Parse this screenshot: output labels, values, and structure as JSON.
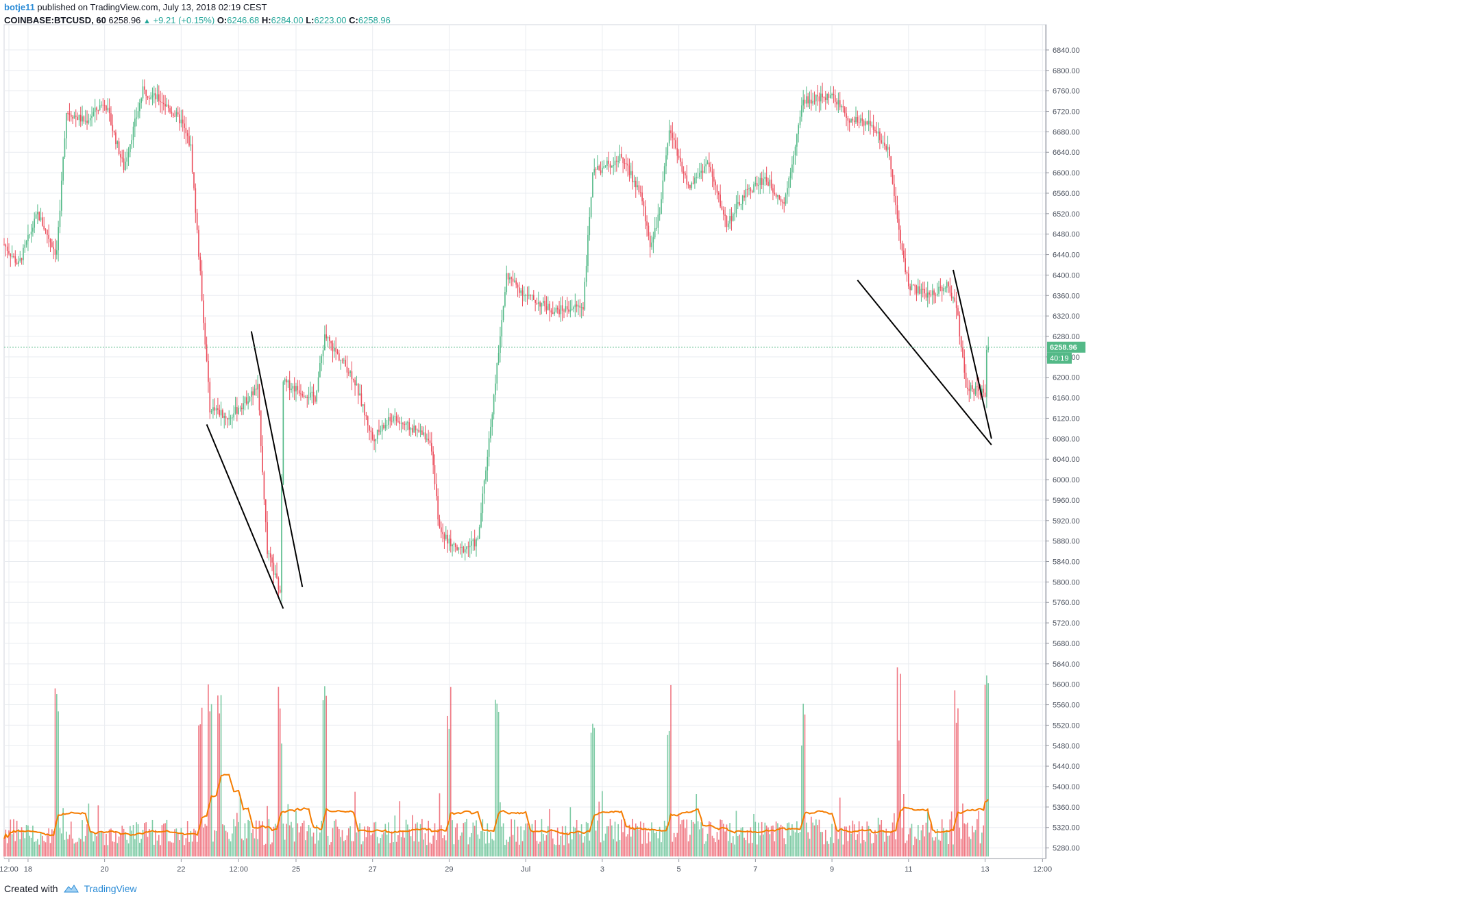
{
  "header": {
    "user": "botje11",
    "published_text": "published on TradingView.com, July 13, 2018 02:19 CEST",
    "symbol": "COINBASE:BTCUSD, 60",
    "last": "6258.96",
    "change": "+9.21 (+0.15%)",
    "o_label": "O:",
    "o_value": "6246.68",
    "h_label": "H:",
    "h_value": "6284.00",
    "l_label": "L:",
    "l_value": "6223.00",
    "c_label": "C:",
    "c_value": "6258.96"
  },
  "footer": {
    "created_with": "Created with",
    "brand": "TradingView"
  },
  "colors": {
    "up": "#53b987",
    "down": "#eb4d5c",
    "grid": "#e9ecf0",
    "axis_text": "#4c525e",
    "ma": "#f57c00",
    "price_tag": "#53b987"
  },
  "chart_data": {
    "type": "candlestick",
    "x_start": "2018-06-17 09:00",
    "x_end": "2018-07-13 02:00",
    "interval": "60",
    "x_tick_labels": [
      "12:00",
      "18",
      "20",
      "22",
      "12:00",
      "25",
      "27",
      "29",
      "Jul",
      "3",
      "5",
      "7",
      "9",
      "11",
      "13",
      "12:00"
    ],
    "x_tick_times": [
      "2018-06-17 12:00",
      "2018-06-18 00:00",
      "2018-06-20 00:00",
      "2018-06-22 00:00",
      "2018-06-23 12:00",
      "2018-06-25 00:00",
      "2018-06-27 00:00",
      "2018-06-29 00:00",
      "2018-07-01 00:00",
      "2018-07-03 00:00",
      "2018-07-05 00:00",
      "2018-07-07 00:00",
      "2018-07-09 00:00",
      "2018-07-11 00:00",
      "2018-07-13 00:00",
      "2018-07-14 12:00"
    ],
    "y_ticks": [
      5280,
      5320,
      5360,
      5400,
      5440,
      5480,
      5520,
      5560,
      5600,
      5640,
      5680,
      5720,
      5760,
      5800,
      5840,
      5880,
      5920,
      5960,
      6000,
      6040,
      6080,
      6120,
      6160,
      6200,
      6240,
      6280,
      6320,
      6360,
      6400,
      6440,
      6480,
      6520,
      6560,
      6600,
      6640,
      6680,
      6720,
      6760,
      6800,
      6840
    ],
    "ylim": [
      5250,
      6860
    ],
    "price_path": [
      [
        "2018-06-17 09:00",
        6460
      ],
      [
        "2018-06-17 18:00",
        6420
      ],
      [
        "2018-06-18 06:00",
        6520
      ],
      [
        "2018-06-18 18:00",
        6440
      ],
      [
        "2018-06-19 00:00",
        6720
      ],
      [
        "2018-06-19 12:00",
        6700
      ],
      [
        "2018-06-20 00:00",
        6740
      ],
      [
        "2018-06-20 12:00",
        6610
      ],
      [
        "2018-06-21 00:00",
        6760
      ],
      [
        "2018-06-21 12:00",
        6740
      ],
      [
        "2018-06-22 00:00",
        6700
      ],
      [
        "2018-06-22 06:00",
        6650
      ],
      [
        "2018-06-22 12:00",
        6400
      ],
      [
        "2018-06-22 18:00",
        6140
      ],
      [
        "2018-06-23 06:00",
        6120
      ],
      [
        "2018-06-24 00:00",
        6180
      ],
      [
        "2018-06-24 06:00",
        5860
      ],
      [
        "2018-06-24 14:00",
        5780
      ],
      [
        "2018-06-24 16:00",
        6190
      ],
      [
        "2018-06-25 12:00",
        6160
      ],
      [
        "2018-06-25 18:00",
        6280
      ],
      [
        "2018-06-26 12:00",
        6200
      ],
      [
        "2018-06-27 00:00",
        6080
      ],
      [
        "2018-06-27 12:00",
        6120
      ],
      [
        "2018-06-28 12:00",
        6080
      ],
      [
        "2018-06-28 18:00",
        5900
      ],
      [
        "2018-06-29 06:00",
        5860
      ],
      [
        "2018-06-29 18:00",
        5880
      ],
      [
        "2018-06-30 06:00",
        6220
      ],
      [
        "2018-06-30 12:00",
        6400
      ],
      [
        "2018-07-01 00:00",
        6360
      ],
      [
        "2018-07-01 18:00",
        6330
      ],
      [
        "2018-07-02 12:00",
        6340
      ],
      [
        "2018-07-02 18:00",
        6600
      ],
      [
        "2018-07-03 12:00",
        6630
      ],
      [
        "2018-07-04 00:00",
        6560
      ],
      [
        "2018-07-04 06:00",
        6460
      ],
      [
        "2018-07-04 12:00",
        6520
      ],
      [
        "2018-07-04 18:00",
        6690
      ],
      [
        "2018-07-05 06:00",
        6570
      ],
      [
        "2018-07-05 18:00",
        6620
      ],
      [
        "2018-07-06 06:00",
        6500
      ],
      [
        "2018-07-06 18:00",
        6560
      ],
      [
        "2018-07-07 06:00",
        6590
      ],
      [
        "2018-07-07 18:00",
        6540
      ],
      [
        "2018-07-08 06:00",
        6740
      ],
      [
        "2018-07-09 00:00",
        6750
      ],
      [
        "2018-07-09 12:00",
        6700
      ],
      [
        "2018-07-10 00:00",
        6700
      ],
      [
        "2018-07-10 12:00",
        6640
      ],
      [
        "2018-07-10 18:00",
        6480
      ],
      [
        "2018-07-11 00:00",
        6380
      ],
      [
        "2018-07-11 12:00",
        6360
      ],
      [
        "2018-07-12 00:00",
        6380
      ],
      [
        "2018-07-12 06:00",
        6340
      ],
      [
        "2018-07-12 12:00",
        6180
      ],
      [
        "2018-07-13 00:00",
        6170
      ],
      [
        "2018-07-13 01:00",
        6250
      ],
      [
        "2018-07-13 02:00",
        6258.96
      ]
    ],
    "volume_spikes_times": [
      "2018-06-18 18:00",
      "2018-06-22 12:00",
      "2018-06-22 18:00",
      "2018-06-23 00:00",
      "2018-06-24 14:00",
      "2018-06-25 18:00",
      "2018-06-29 00:00",
      "2018-06-30 06:00",
      "2018-07-02 18:00",
      "2018-07-04 18:00",
      "2018-07-08 06:00",
      "2018-07-10 18:00",
      "2018-07-12 06:00",
      "2018-07-13 01:00"
    ],
    "trendlines": [
      {
        "from": [
          "2018-06-22 16:00",
          6108
        ],
        "to": [
          "2018-06-24 16:00",
          5748
        ]
      },
      {
        "from": [
          "2018-06-23 20:00",
          6290
        ],
        "to": [
          "2018-06-25 04:00",
          5790
        ]
      },
      {
        "from": [
          "2018-07-09 16:00",
          6390
        ],
        "to": [
          "2018-07-13 04:00",
          6068
        ]
      },
      {
        "from": [
          "2018-07-12 04:00",
          6410
        ],
        "to": [
          "2018-07-13 04:00",
          6080
        ]
      }
    ],
    "last_price_label": "6258.96",
    "countdown_label": "40:19",
    "grid": true
  }
}
